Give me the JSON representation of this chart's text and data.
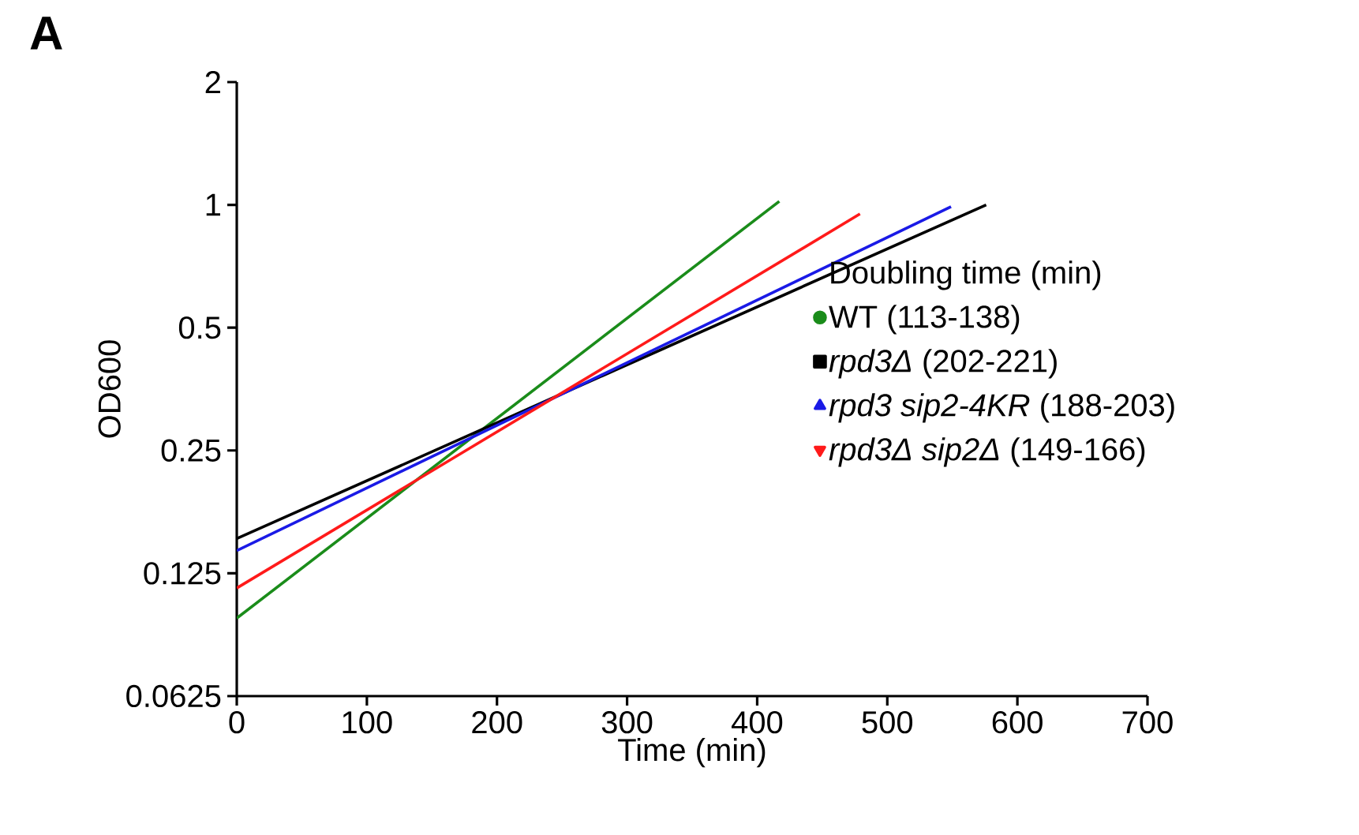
{
  "chart_data": {
    "type": "line",
    "title": "A",
    "xlabel": "Time (min)",
    "ylabel": "OD600",
    "legend_title": "Doubling time (min)",
    "log": "y",
    "xlim": [
      0,
      700
    ],
    "xticks": [
      0,
      100,
      200,
      300,
      400,
      500,
      600,
      700
    ],
    "ylim": [
      0.0625,
      2
    ],
    "yticks": [
      0.0625,
      0.125,
      0.25,
      0.5,
      1,
      2
    ],
    "grid": false,
    "legend": "right",
    "series": [
      {
        "name": "WT (113-138)",
        "color": "#1a8c1a",
        "x": [
          0,
          417
        ],
        "values": [
          0.097,
          1.02
        ]
      },
      {
        "name": "*rpd3Δ* (202-221)",
        "color": "#000000",
        "x": [
          0,
          576
        ],
        "values": [
          0.152,
          1.0
        ]
      },
      {
        "name": "*rpd3 sip2-4KR* (188-203)",
        "color": "#1a1ae6",
        "x": [
          0,
          549
        ],
        "values": [
          0.142,
          0.99
        ]
      },
      {
        "name": "*rpd3Δ sip2Δ* (149-166)",
        "color": "#ff1a1a",
        "x": [
          0,
          479
        ],
        "values": [
          0.115,
          0.95
        ]
      }
    ]
  }
}
